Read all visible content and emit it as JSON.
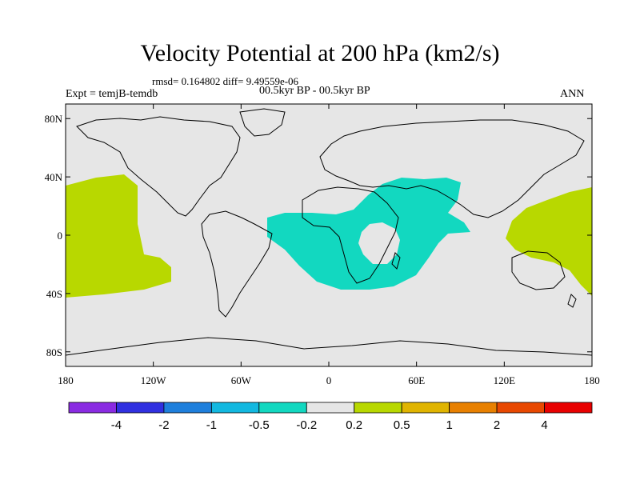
{
  "title": "Velocity Potential at 200 hPa (km2/s)",
  "stats": "rmsd= 0.164802 diff= 9.49559e-06",
  "expt": "Expt = temjB-temdb",
  "period": "00.5kyr BP - 00.5kyr BP",
  "season": "ANN",
  "lat_labels": [
    "80N",
    "40N",
    "0",
    "40S",
    "80S"
  ],
  "lat_values": [
    80,
    40,
    0,
    -40,
    -80
  ],
  "lon_labels": [
    "180",
    "120W",
    "60W",
    "0",
    "60E",
    "120E",
    "180"
  ],
  "lon_values": [
    -180,
    -120,
    -60,
    0,
    60,
    120,
    180
  ],
  "colorbar": {
    "labels": [
      "-4",
      "-2",
      "-1",
      "-0.5",
      "-0.2",
      "0.2",
      "0.5",
      "1",
      "2",
      "4"
    ],
    "colors": [
      "#8a2be2",
      "#3030e0",
      "#1e7fdc",
      "#12b8e0",
      "#12d8c0",
      "#e6e6e6",
      "#b8d800",
      "#e0b400",
      "#e88000",
      "#e84800",
      "#e80000"
    ]
  },
  "field_colors": {
    "background": "#e6e6e6",
    "negative": "#12d8c0",
    "positive": "#b8d800"
  }
}
